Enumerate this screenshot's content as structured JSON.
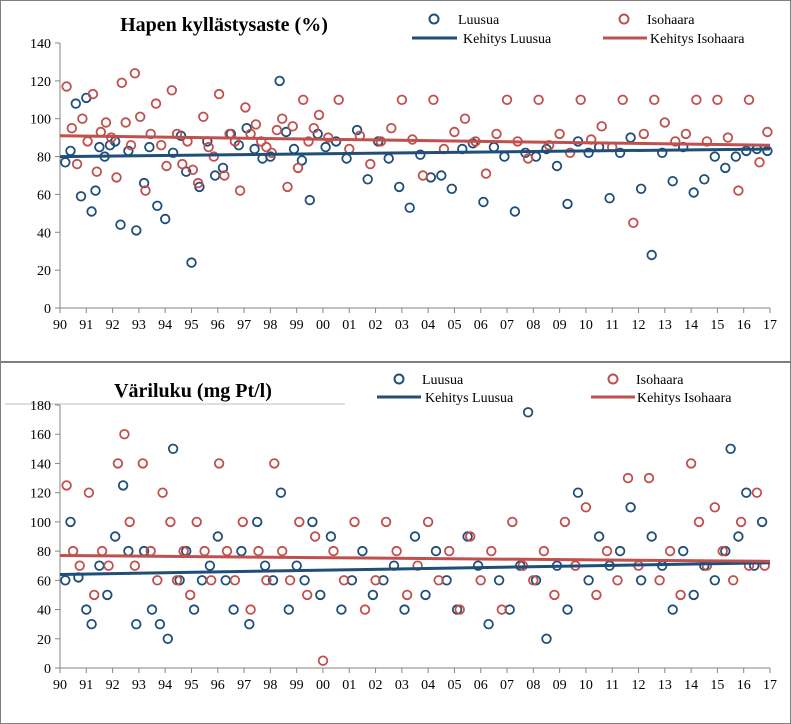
{
  "chart_data": [
    {
      "type": "scatter",
      "title": "Hapen kyllästysaste (%)",
      "xlabel": "",
      "ylabel": "",
      "ylim": [
        0,
        140
      ],
      "yticks": [
        0,
        20,
        40,
        60,
        80,
        100,
        120,
        140
      ],
      "x_range": [
        1990,
        2017
      ],
      "x_tick_labels": [
        "90",
        "91",
        "92",
        "93",
        "94",
        "95",
        "96",
        "97",
        "98",
        "99",
        "00",
        "01",
        "02",
        "03",
        "04",
        "05",
        "06",
        "07",
        "08",
        "09",
        "10",
        "11",
        "12",
        "13",
        "14",
        "15",
        "16",
        "17"
      ],
      "grid": false,
      "legend_position": "top-right",
      "colors": {
        "luusua": "#1f4e79",
        "isohaara": "#c0504d"
      },
      "legend": {
        "luusua": "Luusua",
        "isohaara": "Isohaara",
        "trend_luusua": "Kehitys Luusua",
        "trend_isohaara": "Kehitys Isohaara"
      },
      "trends": [
        {
          "name": "Kehitys Luusua",
          "x": [
            1990.0,
            2017.0
          ],
          "y": [
            80,
            84
          ]
        },
        {
          "name": "Kehitys Isohaara",
          "x": [
            1990.0,
            2017.0
          ],
          "y": [
            91,
            86
          ]
        }
      ],
      "series": [
        {
          "name": "Luusua",
          "x": [
            1990.2,
            1990.4,
            1990.6,
            1990.8,
            1991.0,
            1991.2,
            1991.35,
            1991.5,
            1991.7,
            1991.9,
            1992.1,
            1992.3,
            1992.6,
            1992.9,
            1993.2,
            1993.4,
            1993.7,
            1994.0,
            1994.3,
            1994.6,
            1994.8,
            1995.0,
            1995.3,
            1995.6,
            1995.9,
            1996.2,
            1996.5,
            1996.8,
            1997.1,
            1997.4,
            1997.7,
            1998.0,
            1998.35,
            1998.6,
            1998.9,
            1999.2,
            1999.5,
            1999.8,
            2000.1,
            2000.5,
            2000.9,
            2001.3,
            2001.7,
            2002.1,
            2002.5,
            2002.9,
            2003.3,
            2003.7,
            2004.1,
            2004.5,
            2004.9,
            2005.3,
            2005.7,
            2006.1,
            2006.5,
            2006.9,
            2007.3,
            2007.7,
            2008.1,
            2008.5,
            2008.9,
            2009.3,
            2009.7,
            2010.1,
            2010.5,
            2010.9,
            2011.3,
            2011.7,
            2012.1,
            2012.5,
            2012.9,
            2013.3,
            2013.7,
            2014.1,
            2014.5,
            2014.9,
            2015.3,
            2015.7,
            2016.1,
            2016.5,
            2016.9
          ],
          "y": [
            77,
            83,
            108,
            59,
            111,
            51,
            62,
            85,
            80,
            86,
            88,
            44,
            83,
            41,
            66,
            85,
            54,
            47,
            82,
            91,
            72,
            24,
            64,
            88,
            70,
            74,
            92,
            86,
            95,
            84,
            79,
            80,
            120,
            93,
            84,
            78,
            57,
            92,
            85,
            88,
            79,
            94,
            68,
            88,
            79,
            64,
            53,
            81,
            69,
            70,
            63,
            84,
            87,
            56,
            85,
            80,
            51,
            82,
            80,
            84,
            75,
            55,
            88,
            82,
            85,
            58,
            82,
            90,
            63,
            28,
            82,
            67,
            85,
            61,
            68,
            80,
            74,
            80,
            83,
            84,
            83
          ]
        },
        {
          "name": "Isohaara",
          "x": [
            1990.25,
            1990.45,
            1990.65,
            1990.85,
            1991.05,
            1991.25,
            1991.4,
            1991.55,
            1991.75,
            1991.95,
            1992.15,
            1992.35,
            1992.5,
            1992.7,
            1992.85,
            1993.05,
            1993.25,
            1993.45,
            1993.65,
            1993.85,
            1994.05,
            1994.25,
            1994.45,
            1994.65,
            1994.85,
            1995.05,
            1995.25,
            1995.45,
            1995.65,
            1995.85,
            1996.05,
            1996.25,
            1996.45,
            1996.65,
            1996.85,
            1997.05,
            1997.25,
            1997.45,
            1997.65,
            1997.85,
            1998.05,
            1998.25,
            1998.45,
            1998.65,
            1998.85,
            1999.05,
            1999.25,
            1999.45,
            1999.65,
            1999.85,
            2000.2,
            2000.6,
            2001.0,
            2001.4,
            2001.8,
            2002.2,
            2002.6,
            2003.0,
            2003.4,
            2003.8,
            2004.2,
            2004.6,
            2005.0,
            2005.4,
            2005.8,
            2006.2,
            2006.6,
            2007.0,
            2007.4,
            2007.8,
            2008.2,
            2008.6,
            2009.0,
            2009.4,
            2009.8,
            2010.2,
            2010.6,
            2011.0,
            2011.4,
            2011.8,
            2012.2,
            2012.6,
            2013.0,
            2013.4,
            2013.8,
            2014.2,
            2014.6,
            2015.0,
            2015.4,
            2015.8,
            2016.2,
            2016.6,
            2016.9
          ],
          "y": [
            117,
            95,
            76,
            100,
            88,
            113,
            72,
            93,
            98,
            90,
            69,
            119,
            98,
            86,
            124,
            101,
            62,
            92,
            108,
            86,
            75,
            115,
            92,
            76,
            88,
            73,
            66,
            101,
            85,
            80,
            113,
            70,
            92,
            88,
            62,
            106,
            92,
            97,
            88,
            85,
            82,
            94,
            100,
            64,
            96,
            74,
            110,
            88,
            95,
            102,
            90,
            110,
            84,
            91,
            76,
            88,
            95,
            110,
            89,
            70,
            110,
            84,
            93,
            100,
            88,
            71,
            92,
            110,
            88,
            79,
            110,
            86,
            92,
            82,
            110,
            89,
            96,
            85,
            110,
            45,
            92,
            110,
            98,
            88,
            92,
            110,
            88,
            110,
            90,
            62,
            110,
            77,
            93
          ]
        }
      ]
    },
    {
      "type": "scatter",
      "title": "Väriluku  (mg Pt/l)",
      "xlabel": "",
      "ylabel": "",
      "ylim": [
        0,
        180
      ],
      "yticks": [
        0,
        20,
        40,
        60,
        80,
        100,
        120,
        140,
        160,
        180
      ],
      "x_range": [
        1990,
        2017
      ],
      "x_tick_labels": [
        "90",
        "91",
        "92",
        "93",
        "94",
        "95",
        "96",
        "97",
        "98",
        "99",
        "00",
        "01",
        "02",
        "03",
        "04",
        "05",
        "06",
        "07",
        "08",
        "09",
        "10",
        "11",
        "12",
        "13",
        "14",
        "15",
        "16",
        "17"
      ],
      "grid": false,
      "legend_position": "top-right",
      "colors": {
        "luusua": "#1f4e79",
        "isohaara": "#c0504d"
      },
      "legend": {
        "luusua": "Luusua",
        "isohaara": "Isohaara",
        "trend_luusua": "Kehitys Luusua",
        "trend_isohaara": "Kehitys Isohaara"
      },
      "trends": [
        {
          "name": "Kehitys Luusua",
          "x": [
            1990.0,
            2017.0
          ],
          "y": [
            64,
            72
          ]
        },
        {
          "name": "Kehitys Isohaara",
          "x": [
            1990.0,
            2017.0
          ],
          "y": [
            77,
            73
          ]
        }
      ],
      "series": [
        {
          "name": "Luusua",
          "x": [
            1990.2,
            1990.4,
            1990.7,
            1991.0,
            1991.2,
            1991.5,
            1991.8,
            1992.1,
            1992.4,
            1992.6,
            1992.9,
            1993.2,
            1993.5,
            1993.8,
            1994.1,
            1994.3,
            1994.55,
            1994.8,
            1995.1,
            1995.4,
            1995.7,
            1996.0,
            1996.3,
            1996.6,
            1996.9,
            1997.2,
            1997.5,
            1997.8,
            1998.1,
            1998.4,
            1998.7,
            1999.0,
            1999.3,
            1999.6,
            1999.9,
            2000.3,
            2000.7,
            2001.1,
            2001.5,
            2001.9,
            2002.3,
            2002.7,
            2003.1,
            2003.5,
            2003.9,
            2004.3,
            2004.7,
            2005.1,
            2005.5,
            2005.9,
            2006.3,
            2006.7,
            2007.1,
            2007.5,
            2007.8,
            2008.1,
            2008.5,
            2008.9,
            2009.3,
            2009.7,
            2010.1,
            2010.5,
            2010.9,
            2011.3,
            2011.7,
            2012.1,
            2012.5,
            2012.9,
            2013.3,
            2013.7,
            2014.1,
            2014.5,
            2014.9,
            2015.3,
            2015.5,
            2015.8,
            2016.1,
            2016.4,
            2016.7
          ],
          "y": [
            60,
            100,
            62,
            40,
            30,
            70,
            50,
            90,
            125,
            80,
            30,
            80,
            40,
            30,
            20,
            150,
            60,
            80,
            40,
            60,
            70,
            90,
            60,
            40,
            80,
            30,
            100,
            70,
            60,
            120,
            40,
            70,
            60,
            100,
            50,
            90,
            40,
            60,
            80,
            50,
            60,
            70,
            40,
            90,
            50,
            80,
            60,
            40,
            90,
            70,
            30,
            60,
            40,
            70,
            175,
            60,
            20,
            70,
            40,
            120,
            60,
            90,
            70,
            80,
            110,
            60,
            90,
            70,
            40,
            80,
            50,
            70,
            60,
            80,
            150,
            90,
            120,
            70,
            100
          ]
        },
        {
          "name": "Isohaara",
          "x": [
            1990.25,
            1990.5,
            1990.75,
            1991.1,
            1991.3,
            1991.6,
            1991.85,
            1992.2,
            1992.45,
            1992.65,
            1992.85,
            1993.15,
            1993.45,
            1993.7,
            1993.9,
            1994.2,
            1994.45,
            1994.7,
            1994.95,
            1995.2,
            1995.5,
            1995.75,
            1996.05,
            1996.35,
            1996.65,
            1996.95,
            1997.25,
            1997.55,
            1997.85,
            1998.15,
            1998.45,
            1998.75,
            1999.1,
            1999.4,
            1999.7,
            2000.0,
            2000.4,
            2000.8,
            2001.2,
            2001.6,
            2002.0,
            2002.4,
            2002.8,
            2003.2,
            2003.6,
            2004.0,
            2004.4,
            2004.8,
            2005.2,
            2005.6,
            2006.0,
            2006.4,
            2006.8,
            2007.2,
            2007.6,
            2008.0,
            2008.4,
            2008.8,
            2009.2,
            2009.6,
            2010.0,
            2010.4,
            2010.8,
            2011.2,
            2011.6,
            2012.0,
            2012.4,
            2012.8,
            2013.2,
            2013.6,
            2014.0,
            2014.3,
            2014.6,
            2014.9,
            2015.2,
            2015.6,
            2015.9,
            2016.2,
            2016.5,
            2016.8
          ],
          "y": [
            125,
            80,
            70,
            120,
            50,
            80,
            70,
            140,
            160,
            100,
            70,
            140,
            80,
            60,
            120,
            100,
            60,
            80,
            50,
            100,
            80,
            60,
            140,
            80,
            60,
            100,
            40,
            80,
            60,
            140,
            80,
            60,
            100,
            50,
            90,
            5,
            80,
            60,
            100,
            40,
            60,
            100,
            80,
            50,
            70,
            100,
            60,
            80,
            40,
            90,
            60,
            80,
            40,
            100,
            70,
            60,
            80,
            50,
            100,
            70,
            110,
            50,
            80,
            60,
            130,
            70,
            130,
            60,
            80,
            50,
            140,
            100,
            70,
            110,
            80,
            60,
            100,
            70,
            120,
            70
          ]
        }
      ]
    }
  ]
}
